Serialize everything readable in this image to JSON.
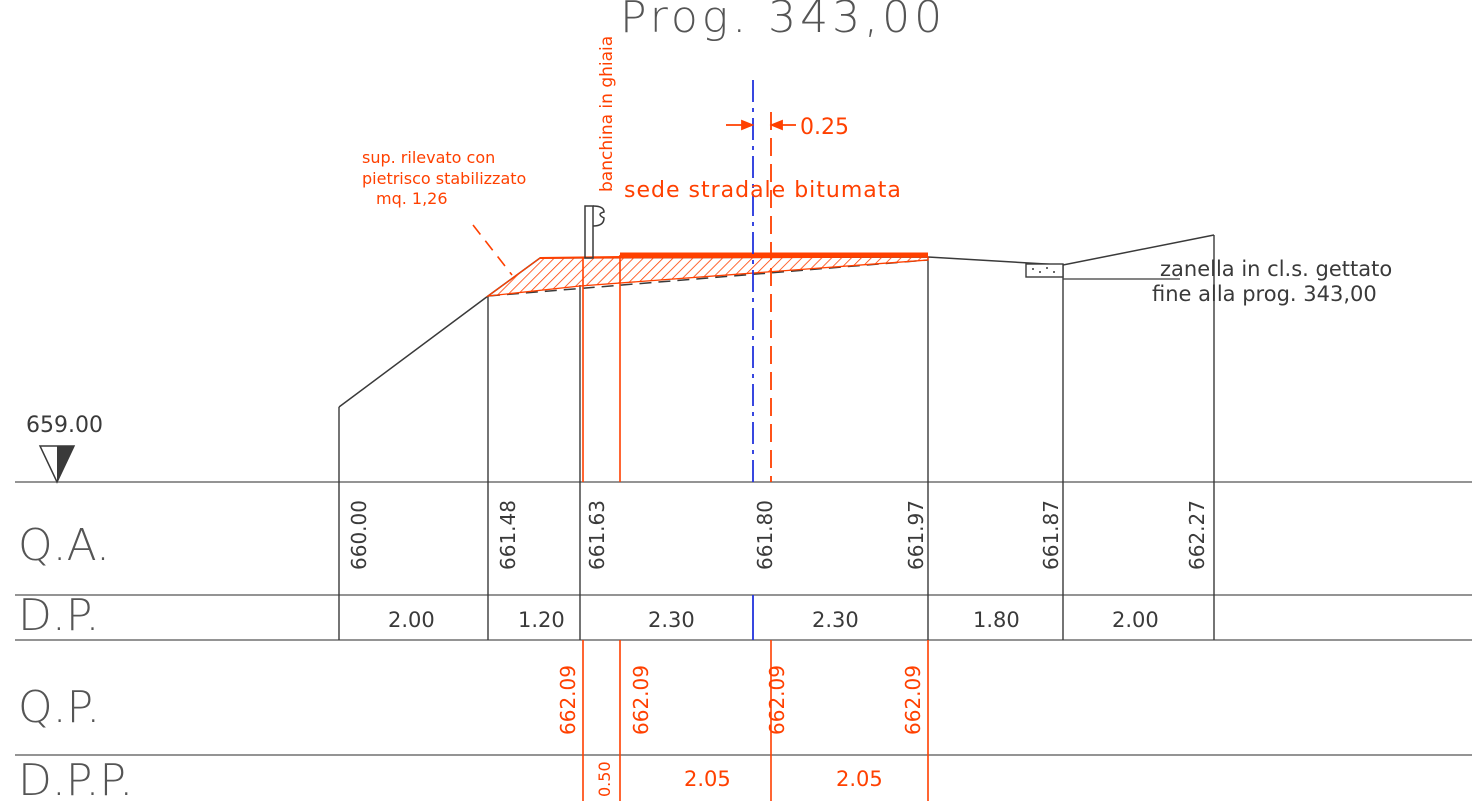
{
  "title": "Prog. 343,00",
  "datum": "659.00",
  "rows": {
    "qa": "Q.A.",
    "dp": "D.P.",
    "qp": "Q.P.",
    "dpp": "D.P.P."
  },
  "qa_values": [
    "660.00",
    "661.48",
    "661.63",
    "661.80",
    "661.97",
    "661.87",
    "662.27"
  ],
  "dp_values": [
    "2.00",
    "1.20",
    "2.30",
    "2.30",
    "1.80",
    "2.00"
  ],
  "qp_values": [
    "662.09",
    "662.09",
    "662.09",
    "662.09"
  ],
  "dpp_values": [
    "0.50",
    "2.05",
    "2.05"
  ],
  "annotations": {
    "banchina": "banchina in ghiaia",
    "dim_025": "0.25",
    "sede": "sede stradale bitumata",
    "sup_line1": "sup. rilevato con",
    "sup_line2": "pietrisco stabilizzato",
    "sup_line3": "mq. 1,26",
    "zanella_line1": "zanella in cl.s. gettato",
    "zanella_line2": "fine alla prog. 343,00"
  },
  "colors": {
    "project": "#ff4000",
    "axis": "#2233dd",
    "existing": "#3a3a3a"
  }
}
